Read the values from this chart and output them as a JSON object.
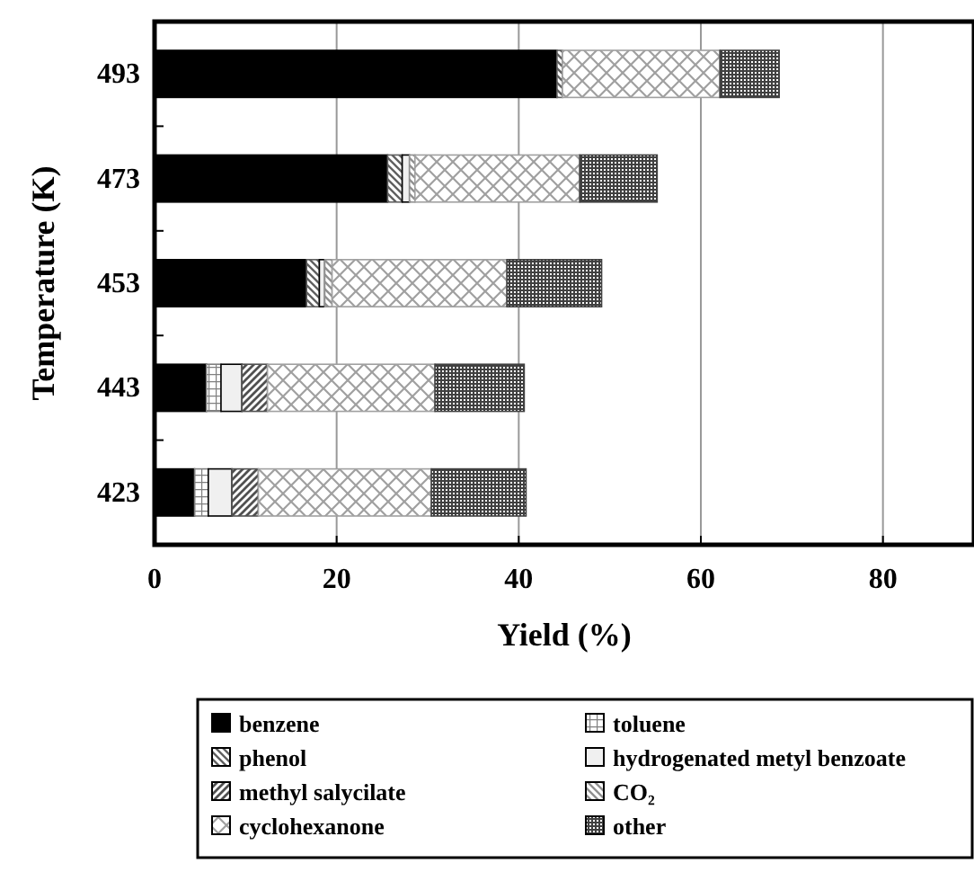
{
  "chart_data": {
    "type": "bar",
    "orientation": "horizontal",
    "stacked": true,
    "xlabel": "Yield (%)",
    "ylabel": "Temperature (K)",
    "categories": [
      "493",
      "473",
      "453",
      "443",
      "423"
    ],
    "xlim": [
      0,
      90
    ],
    "xticks": [
      0,
      20,
      40,
      60,
      80
    ],
    "grid": "x",
    "legend": "bottom",
    "series": [
      {
        "name": "benzene",
        "color": "#000000",
        "values": [
          44.2,
          25.6,
          16.7,
          5.7,
          4.4
        ]
      },
      {
        "name": "toluene",
        "color": "#808080",
        "values": [
          0,
          0,
          0,
          1.6,
          1.5
        ]
      },
      {
        "name": "phenol",
        "color": "#606060",
        "values": [
          0.6,
          1.6,
          1.4,
          0,
          0
        ]
      },
      {
        "name": "hydrogenated metyl benzoate",
        "color": "#f0f0f0",
        "values": [
          0,
          0.8,
          0.6,
          2.3,
          2.6
        ]
      },
      {
        "name": "methyl salycilate",
        "color": "#505050",
        "values": [
          0,
          0,
          0,
          2.8,
          2.9
        ]
      },
      {
        "name": "CO₂",
        "color": "#909090",
        "values": [
          0,
          0.6,
          0.8,
          0,
          0
        ]
      },
      {
        "name": "cyclohexanone",
        "color": "#a0a0a0",
        "values": [
          17.3,
          18.1,
          19.2,
          18.4,
          19.0
        ]
      },
      {
        "name": "other",
        "color": "#404040",
        "values": [
          6.5,
          8.5,
          10.4,
          9.8,
          10.4
        ]
      }
    ]
  }
}
